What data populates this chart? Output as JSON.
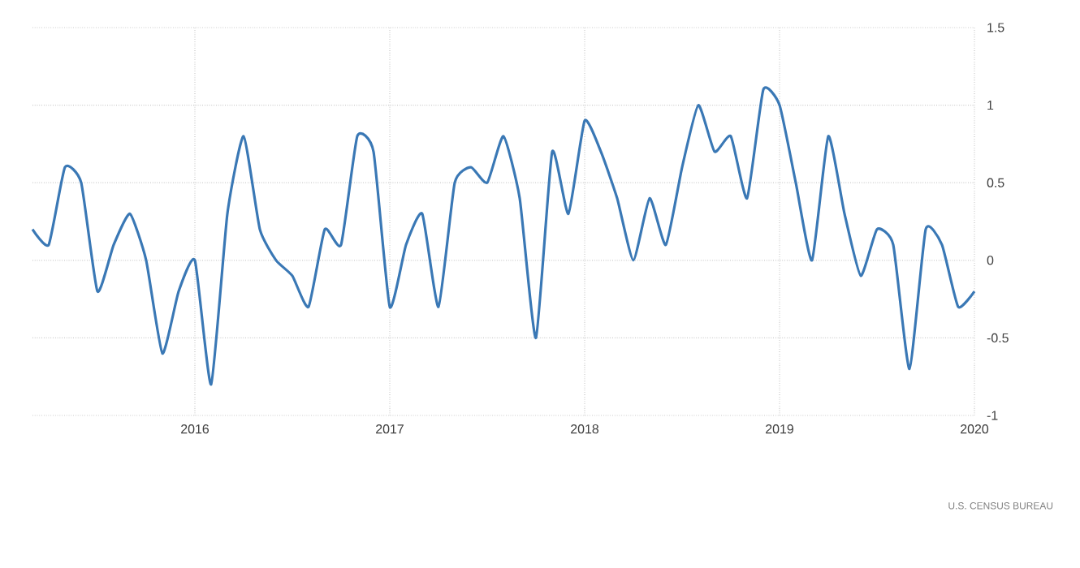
{
  "chart_data": {
    "type": "line",
    "x": [
      "2015-03",
      "2015-04",
      "2015-05",
      "2015-06",
      "2015-07",
      "2015-08",
      "2015-09",
      "2015-10",
      "2015-11",
      "2015-12",
      "2016-01",
      "2016-02",
      "2016-03",
      "2016-04",
      "2016-05",
      "2016-06",
      "2016-07",
      "2016-08",
      "2016-09",
      "2016-10",
      "2016-11",
      "2016-12",
      "2017-01",
      "2017-02",
      "2017-03",
      "2017-04",
      "2017-05",
      "2017-06",
      "2017-07",
      "2017-08",
      "2017-09",
      "2017-10",
      "2017-11",
      "2017-12",
      "2018-01",
      "2018-02",
      "2018-03",
      "2018-04",
      "2018-05",
      "2018-06",
      "2018-07",
      "2018-08",
      "2018-09",
      "2018-10",
      "2018-11",
      "2018-12",
      "2019-01",
      "2019-02",
      "2019-03",
      "2019-04",
      "2019-05",
      "2019-06",
      "2019-07",
      "2019-08",
      "2019-09",
      "2019-10",
      "2019-11",
      "2019-12",
      "2020-01"
    ],
    "series": [
      {
        "color": "#3a78b5",
        "values": [
          0.2,
          0.1,
          0.6,
          0.5,
          -0.2,
          0.1,
          0.3,
          0.0,
          -0.6,
          -0.2,
          0.0,
          -0.8,
          0.3,
          0.8,
          0.2,
          0.0,
          -0.1,
          -0.3,
          0.2,
          0.1,
          0.8,
          0.7,
          -0.3,
          0.1,
          0.3,
          -0.3,
          0.5,
          0.6,
          0.5,
          0.8,
          0.4,
          -0.5,
          0.7,
          0.3,
          0.9,
          0.7,
          0.4,
          0.0,
          0.4,
          0.1,
          0.6,
          1.0,
          0.7,
          0.8,
          0.4,
          1.1,
          1.0,
          0.5,
          0.0,
          0.8,
          0.3,
          -0.1,
          0.2,
          0.1,
          -0.7,
          0.2,
          0.1,
          -0.3,
          -0.2
        ]
      }
    ],
    "xlim": [
      "2015-03",
      "2020-01"
    ],
    "xticks": [
      "2016",
      "2017",
      "2018",
      "2019",
      "2020"
    ],
    "ylim": [
      -1,
      1.5
    ],
    "yticks": [
      -1,
      -0.5,
      0,
      0.5,
      1,
      1.5
    ],
    "grid": true,
    "marker": "none",
    "line_style": "solid",
    "annotations": [
      "U.S. CENSUS BUREAU"
    ]
  }
}
